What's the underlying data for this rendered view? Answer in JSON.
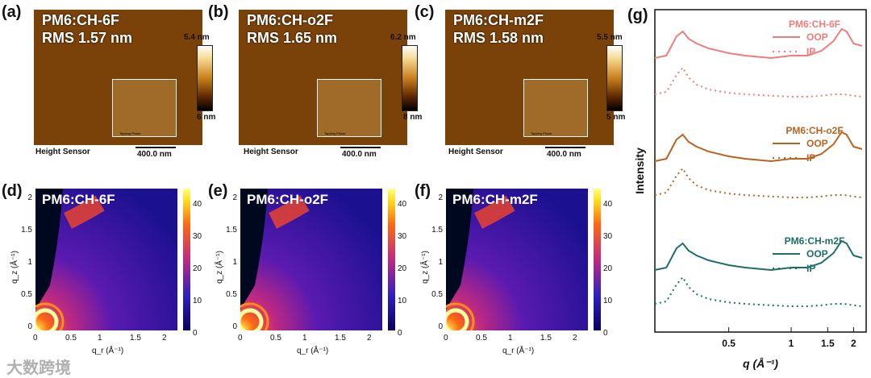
{
  "panels": {
    "a": {
      "label": "(a)",
      "title1": "PM6:CH-6F",
      "title2": "RMS 1.57 nm",
      "cbar_top": "5.4 nm",
      "cbar_bottom": "6 nm",
      "height_sensor": "Height Sensor",
      "scale": "400.0 nm",
      "inset_label": "Tapping Phase"
    },
    "b": {
      "label": "(b)",
      "title1": "PM6:CH-o2F",
      "title2": "RMS 1.65 nm",
      "cbar_top": "6.2 nm",
      "cbar_bottom": "8 nm",
      "height_sensor": "Height Sensor",
      "scale": "400.0 nm",
      "inset_label": "Tapping Phase"
    },
    "c": {
      "label": "(c)",
      "title1": "PM6:CH-m2F",
      "title2": "RMS 1.58 nm",
      "cbar_top": "5.5 nm",
      "cbar_bottom": "5 nm",
      "height_sensor": "Height Sensor",
      "scale": "400.0 nm",
      "inset_label": "Tapping Phase"
    },
    "d": {
      "label": "(d)",
      "title": "PM6:CH-6F"
    },
    "e": {
      "label": "(e)",
      "title": "PM6:CH-o2F"
    },
    "f": {
      "label": "(f)",
      "title": "PM6:CH-m2F"
    },
    "g": {
      "label": "(g)"
    }
  },
  "giwaxs_axes": {
    "ylabel": "q_z (Å⁻¹)",
    "xlabel": "q_r (Å⁻¹)",
    "yticks": [
      "2",
      "1.5",
      "1",
      "0.5",
      "0"
    ],
    "xticks": [
      "0",
      "0.5",
      "1",
      "1.5",
      "2"
    ],
    "cbticks": [
      "40",
      "30",
      "20",
      "10",
      "0"
    ]
  },
  "watermark": "大数跨境",
  "colors": {
    "CH-6F": "#f07c7c",
    "CH-o2F": "#b86420",
    "CH-m2F": "#1e6e68"
  },
  "chart_data": {
    "type": "line",
    "panel": "(g)",
    "xlabel": "q (Å⁻¹)",
    "ylabel": "Intensity",
    "xscale": "log",
    "xticks": [
      0.5,
      1,
      1.5,
      2
    ],
    "xlim": [
      0.22,
      2.3
    ],
    "groups": [
      {
        "name": "PM6:CH-6F",
        "color": "#f07c7c",
        "series": [
          {
            "name": "OOP",
            "style": "solid",
            "x": [
              0.22,
              0.25,
              0.28,
              0.3,
              0.32,
              0.35,
              0.4,
              0.5,
              0.6,
              0.8,
              1.0,
              1.2,
              1.4,
              1.6,
              1.75,
              1.85,
              2.0,
              2.2
            ],
            "y": [
              0.0,
              0.05,
              0.45,
              0.55,
              0.4,
              0.3,
              0.2,
              0.1,
              0.05,
              0.0,
              0.05,
              0.05,
              0.15,
              0.35,
              0.6,
              0.55,
              0.3,
              0.25
            ]
          },
          {
            "name": "IP",
            "style": "dotted",
            "x": [
              0.22,
              0.25,
              0.28,
              0.3,
              0.32,
              0.35,
              0.4,
              0.5,
              0.6,
              0.8,
              1.0,
              1.2,
              1.4,
              1.6,
              1.8,
              2.0,
              2.2
            ],
            "y": [
              0.05,
              0.1,
              0.45,
              0.6,
              0.4,
              0.25,
              0.15,
              0.08,
              0.05,
              0.02,
              0.0,
              0.0,
              0.02,
              0.05,
              0.05,
              0.02,
              0.0
            ]
          }
        ]
      },
      {
        "name": "PM6:CH-o2F",
        "color": "#b86420",
        "series": [
          {
            "name": "OOP",
            "style": "solid",
            "x": [
              0.22,
              0.25,
              0.28,
              0.3,
              0.32,
              0.35,
              0.4,
              0.5,
              0.6,
              0.8,
              1.0,
              1.2,
              1.4,
              1.6,
              1.75,
              1.85,
              2.0,
              2.2
            ],
            "y": [
              0.0,
              0.05,
              0.45,
              0.55,
              0.4,
              0.3,
              0.2,
              0.1,
              0.05,
              0.0,
              0.05,
              0.05,
              0.15,
              0.35,
              0.6,
              0.55,
              0.3,
              0.25
            ]
          },
          {
            "name": "IP",
            "style": "dotted",
            "x": [
              0.22,
              0.25,
              0.28,
              0.3,
              0.32,
              0.35,
              0.4,
              0.5,
              0.6,
              0.8,
              1.0,
              1.2,
              1.4,
              1.6,
              1.8,
              2.0,
              2.2
            ],
            "y": [
              0.05,
              0.1,
              0.45,
              0.6,
              0.4,
              0.25,
              0.15,
              0.08,
              0.05,
              0.02,
              0.0,
              0.0,
              0.02,
              0.05,
              0.05,
              0.02,
              0.0
            ]
          }
        ]
      },
      {
        "name": "PM6:CH-m2F",
        "color": "#1e6e68",
        "series": [
          {
            "name": "OOP",
            "style": "solid",
            "x": [
              0.22,
              0.25,
              0.28,
              0.3,
              0.32,
              0.35,
              0.4,
              0.5,
              0.6,
              0.8,
              1.0,
              1.2,
              1.4,
              1.6,
              1.75,
              1.85,
              2.0,
              2.2
            ],
            "y": [
              0.0,
              0.05,
              0.45,
              0.55,
              0.4,
              0.3,
              0.2,
              0.1,
              0.05,
              0.0,
              0.05,
              0.05,
              0.15,
              0.35,
              0.6,
              0.55,
              0.3,
              0.25
            ]
          },
          {
            "name": "IP",
            "style": "dotted",
            "x": [
              0.22,
              0.25,
              0.28,
              0.3,
              0.32,
              0.35,
              0.4,
              0.5,
              0.6,
              0.8,
              1.0,
              1.2,
              1.4,
              1.6,
              1.8,
              2.0,
              2.2
            ],
            "y": [
              0.05,
              0.1,
              0.45,
              0.6,
              0.4,
              0.25,
              0.15,
              0.08,
              0.05,
              0.02,
              0.0,
              0.0,
              0.02,
              0.05,
              0.05,
              0.02,
              0.0
            ]
          }
        ]
      }
    ]
  }
}
